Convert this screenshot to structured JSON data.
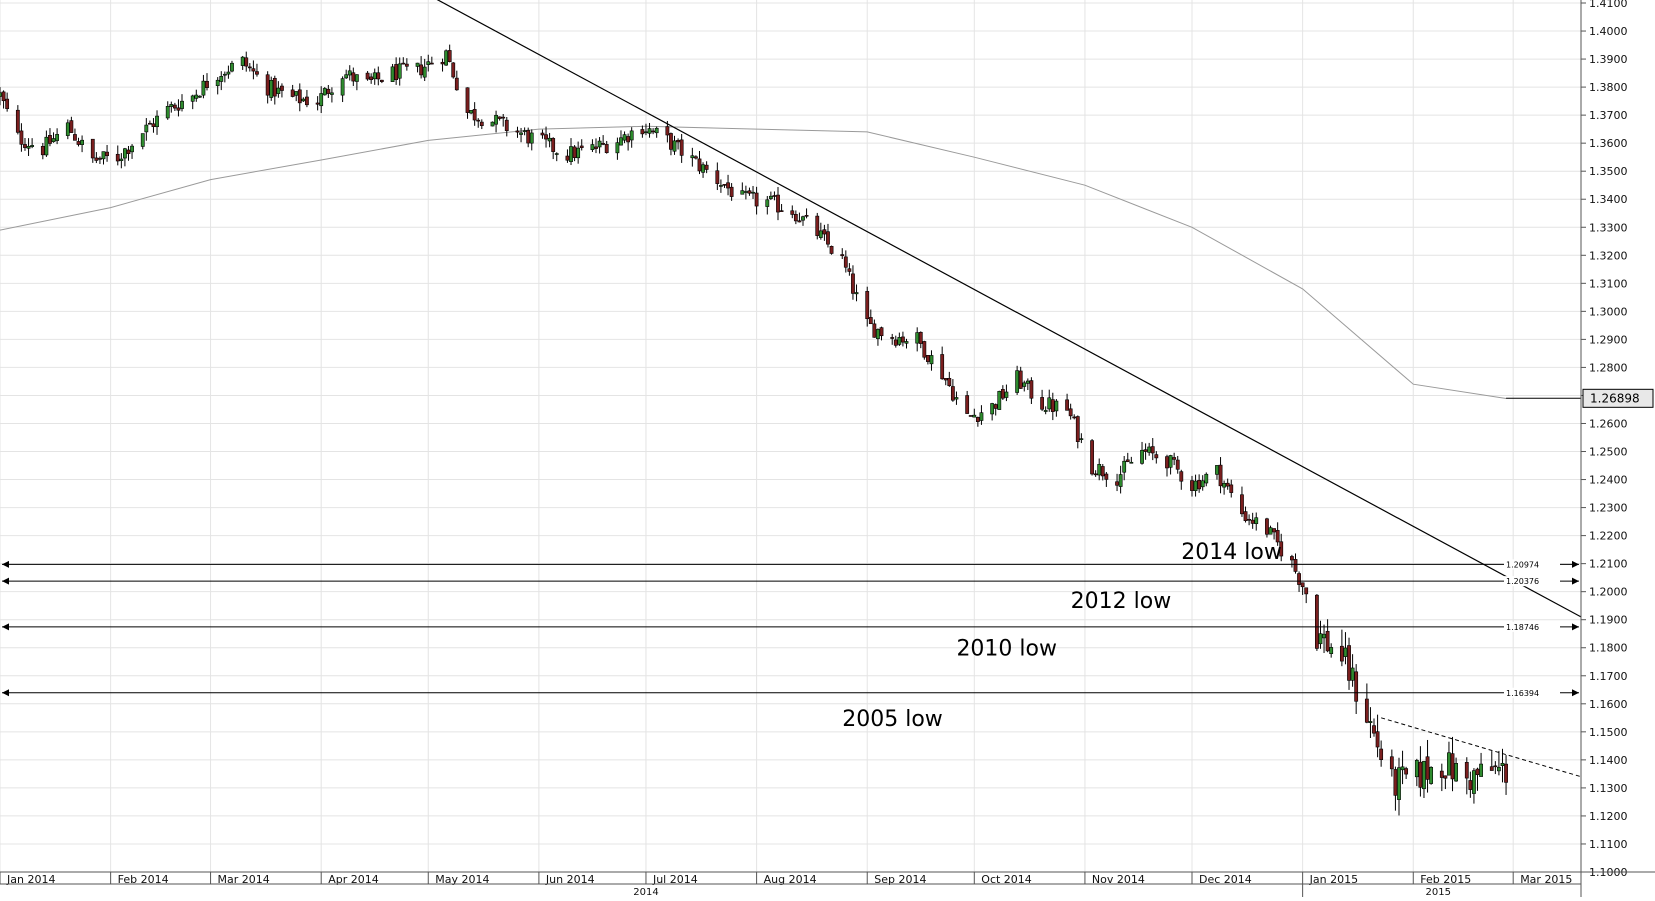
{
  "chart_data": {
    "type": "candlestick",
    "title": "",
    "xlabel": "",
    "ylabel": "",
    "x_start": "2014-01-01",
    "x_end": "2015-03-20",
    "ylim": [
      1.1,
      1.41
    ],
    "y_ticks": [
      "1.1000",
      "1.1100",
      "1.1200",
      "1.1300",
      "1.1400",
      "1.1500",
      "1.1600",
      "1.1700",
      "1.1800",
      "1.1900",
      "1.2000",
      "1.2100",
      "1.2200",
      "1.2300",
      "1.2400",
      "1.2500",
      "1.2600",
      "1.2700",
      "1.2800",
      "1.2900",
      "1.3000",
      "1.3100",
      "1.3200",
      "1.3300",
      "1.3400",
      "1.3500",
      "1.3600",
      "1.3700",
      "1.3800",
      "1.3900",
      "1.4000",
      "1.4100"
    ],
    "months": [
      {
        "label": "Jan 2014",
        "date": "2014-01-01"
      },
      {
        "label": "Feb 2014",
        "date": "2014-02-01"
      },
      {
        "label": "Mar 2014",
        "date": "2014-03-01"
      },
      {
        "label": "Apr 2014",
        "date": "2014-04-01"
      },
      {
        "label": "May 2014",
        "date": "2014-05-01"
      },
      {
        "label": "Jun 2014",
        "date": "2014-06-01"
      },
      {
        "label": "Jul 2014",
        "date": "2014-07-01"
      },
      {
        "label": "Aug 2014",
        "date": "2014-08-01"
      },
      {
        "label": "Sep 2014",
        "date": "2014-09-01"
      },
      {
        "label": "Oct 2014",
        "date": "2014-10-01"
      },
      {
        "label": "Nov 2014",
        "date": "2014-11-01"
      },
      {
        "label": "Dec 2014",
        "date": "2014-12-01"
      },
      {
        "label": "Jan 2015",
        "date": "2015-01-01"
      },
      {
        "label": "Feb 2015",
        "date": "2015-02-01"
      },
      {
        "label": "Mar 2015",
        "date": "2015-03-01"
      }
    ],
    "years": [
      {
        "label": "2014",
        "date": "2014-07-01"
      },
      {
        "label": "2015",
        "date": "2015-02-08"
      }
    ],
    "close_anchors": [
      [
        "2014-01-01",
        1.377
      ],
      [
        "2014-01-06",
        1.362
      ],
      [
        "2014-01-13",
        1.358
      ],
      [
        "2014-01-20",
        1.366
      ],
      [
        "2014-01-27",
        1.354
      ],
      [
        "2014-02-03",
        1.355
      ],
      [
        "2014-02-10",
        1.364
      ],
      [
        "2014-02-17",
        1.372
      ],
      [
        "2014-02-24",
        1.377
      ],
      [
        "2014-03-03",
        1.385
      ],
      [
        "2014-03-10",
        1.389
      ],
      [
        "2014-03-17",
        1.38
      ],
      [
        "2014-03-24",
        1.376
      ],
      [
        "2014-03-31",
        1.375
      ],
      [
        "2014-04-07",
        1.385
      ],
      [
        "2014-04-14",
        1.381
      ],
      [
        "2014-04-21",
        1.385
      ],
      [
        "2014-04-28",
        1.386
      ],
      [
        "2014-05-06",
        1.392
      ],
      [
        "2014-05-12",
        1.371
      ],
      [
        "2014-05-19",
        1.368
      ],
      [
        "2014-05-26",
        1.364
      ],
      [
        "2014-06-02",
        1.36
      ],
      [
        "2014-06-09",
        1.356
      ],
      [
        "2014-06-16",
        1.358
      ],
      [
        "2014-06-23",
        1.361
      ],
      [
        "2014-06-30",
        1.366
      ],
      [
        "2014-07-07",
        1.361
      ],
      [
        "2014-07-14",
        1.354
      ],
      [
        "2014-07-21",
        1.347
      ],
      [
        "2014-07-28",
        1.34
      ],
      [
        "2014-08-04",
        1.339
      ],
      [
        "2014-08-11",
        1.336
      ],
      [
        "2014-08-18",
        1.328
      ],
      [
        "2014-08-25",
        1.318
      ],
      [
        "2014-09-01",
        1.295
      ],
      [
        "2014-09-08",
        1.291
      ],
      [
        "2014-09-15",
        1.29
      ],
      [
        "2014-09-22",
        1.278
      ],
      [
        "2014-09-29",
        1.262
      ],
      [
        "2014-10-06",
        1.266
      ],
      [
        "2014-10-13",
        1.276
      ],
      [
        "2014-10-20",
        1.267
      ],
      [
        "2014-10-27",
        1.265
      ],
      [
        "2014-11-03",
        1.245
      ],
      [
        "2014-11-10",
        1.241
      ],
      [
        "2014-11-17",
        1.25
      ],
      [
        "2014-11-24",
        1.247
      ],
      [
        "2014-12-01",
        1.238
      ],
      [
        "2014-12-08",
        1.243
      ],
      [
        "2014-12-15",
        1.228
      ],
      [
        "2014-12-22",
        1.222
      ],
      [
        "2014-12-29",
        1.21
      ],
      [
        "2015-01-02",
        1.2
      ],
      [
        "2015-01-05",
        1.185
      ],
      [
        "2015-01-12",
        1.177
      ],
      [
        "2015-01-19",
        1.156
      ],
      [
        "2015-01-26",
        1.131
      ],
      [
        "2015-02-02",
        1.134
      ],
      [
        "2015-02-09",
        1.139
      ],
      [
        "2015-02-16",
        1.133
      ],
      [
        "2015-02-23",
        1.136
      ],
      [
        "2015-02-27",
        1.136
      ]
    ],
    "moving_average": [
      [
        "2014-01-01",
        1.329
      ],
      [
        "2014-02-01",
        1.337
      ],
      [
        "2014-03-01",
        1.347
      ],
      [
        "2014-04-01",
        1.354
      ],
      [
        "2014-05-01",
        1.361
      ],
      [
        "2014-06-01",
        1.365
      ],
      [
        "2014-07-01",
        1.366
      ],
      [
        "2014-08-01",
        1.365
      ],
      [
        "2014-09-01",
        1.364
      ],
      [
        "2014-10-01",
        1.355
      ],
      [
        "2014-11-01",
        1.345
      ],
      [
        "2014-12-01",
        1.33
      ],
      [
        "2015-01-01",
        1.308
      ],
      [
        "2015-02-01",
        1.274
      ],
      [
        "2015-02-27",
        1.2689
      ]
    ],
    "current_price": "1.26898",
    "current_price_value": 1.26898,
    "trendline": {
      "from": [
        "2014-04-28",
        1.415
      ],
      "to": [
        "2015-03-20",
        1.191
      ]
    },
    "wedge_line": {
      "from": [
        "2015-01-23",
        1.155
      ],
      "to": [
        "2015-03-20",
        1.134
      ]
    },
    "levels": [
      {
        "name": "2014 low",
        "value": 1.20974,
        "label": "1.20974",
        "text": "2014 low",
        "text_date": "2014-11-28",
        "text_price": 1.2145
      },
      {
        "name": "2012 low",
        "value": 1.20376,
        "label": "1.20376",
        "text": "2012 low",
        "text_date": "2014-10-28",
        "text_price": 1.197
      },
      {
        "name": "2010 low",
        "value": 1.18746,
        "label": "1.18746",
        "text": "2010 low",
        "text_date": "2014-09-26",
        "text_price": 1.18
      },
      {
        "name": "2005 low",
        "value": 1.16394,
        "label": "1.16394",
        "text": "2005 low",
        "text_date": "2014-08-25",
        "text_price": 1.155
      }
    ]
  }
}
